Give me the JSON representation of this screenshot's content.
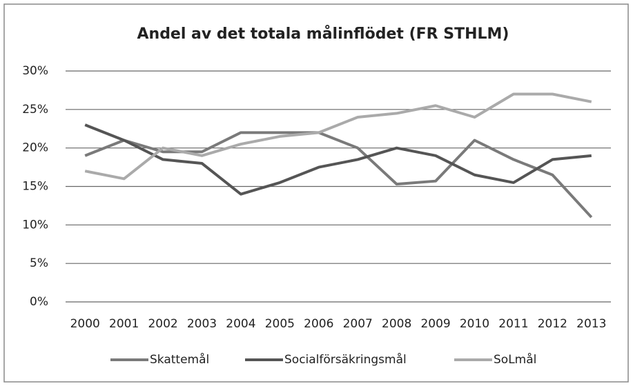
{
  "chart_data": {
    "type": "line",
    "title": "Andel av det totala målinflödet (FR STHLM)",
    "categories": [
      "2000",
      "2001",
      "2002",
      "2003",
      "2004",
      "2005",
      "2006",
      "2007",
      "2008",
      "2009",
      "2010",
      "2011",
      "2012",
      "2013"
    ],
    "series": [
      {
        "name": "Skattemål",
        "color": "#7a7a7a",
        "values": [
          19,
          21,
          19.5,
          19.5,
          22,
          22,
          22,
          20,
          15.3,
          15.7,
          21,
          18.5,
          16.5,
          11
        ]
      },
      {
        "name": "Socialförsäkringsmål",
        "color": "#555555",
        "values": [
          23,
          21,
          18.5,
          18,
          14,
          15.5,
          17.5,
          18.5,
          20,
          19,
          16.5,
          15.5,
          18.5,
          19
        ]
      },
      {
        "name": "SoLmål",
        "color": "#aaaaaa",
        "values": [
          17,
          16,
          20,
          19,
          20.5,
          21.5,
          22,
          24,
          24.5,
          25.5,
          24,
          27,
          27,
          26
        ]
      }
    ],
    "ylim": [
      0,
      30
    ],
    "yticks": [
      {
        "value": 0,
        "label": "0%"
      },
      {
        "value": 5,
        "label": "5%"
      },
      {
        "value": 10,
        "label": "10%"
      },
      {
        "value": 15,
        "label": "15%"
      },
      {
        "value": 20,
        "label": "20%"
      },
      {
        "value": 25,
        "label": "25%"
      },
      {
        "value": 30,
        "label": "30%"
      }
    ],
    "grid": true,
    "legend": "bottom"
  }
}
